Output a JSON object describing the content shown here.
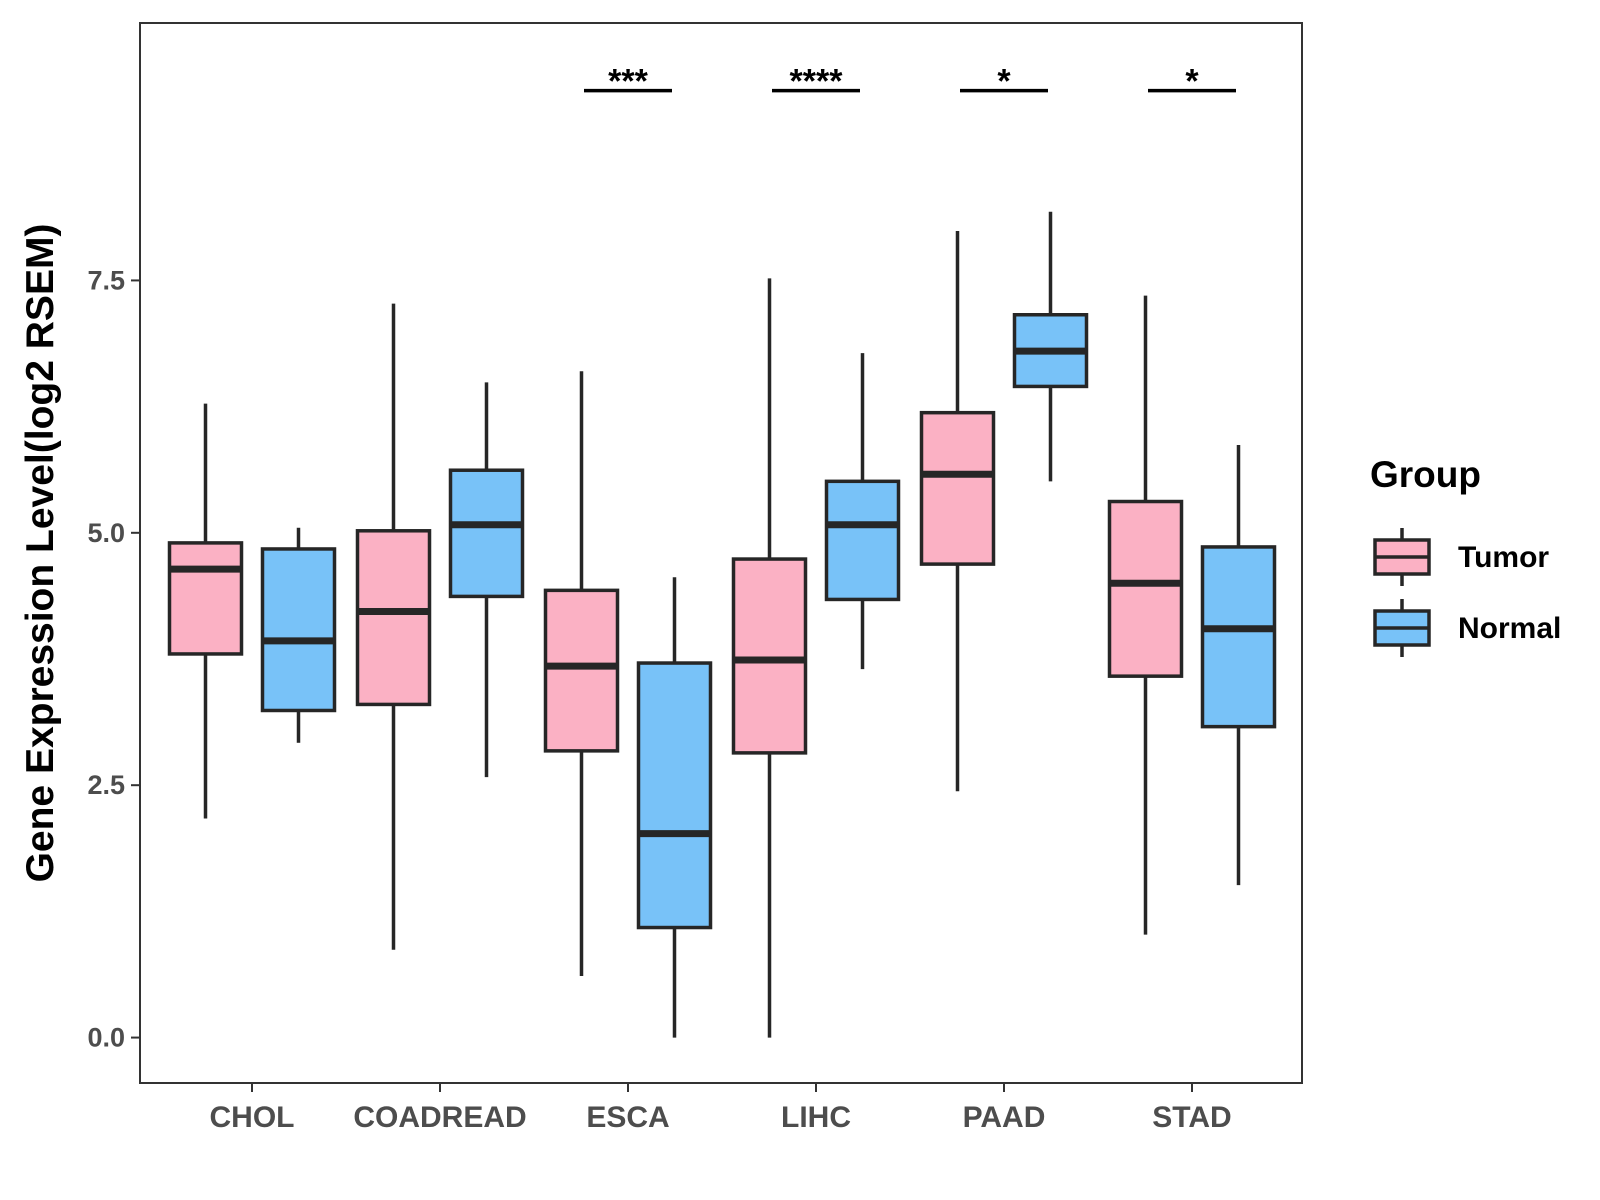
{
  "chart_data": {
    "type": "boxplot",
    "title": "",
    "xlabel": "",
    "ylabel": "Gene Expression Level(log2 RSEM)",
    "ylim": [
      -0.45,
      10.05
    ],
    "yticks": [
      0,
      2.5,
      5,
      7.5
    ],
    "ytick_labels": [
      "0.0",
      "2.5",
      "5.0",
      "7.5"
    ],
    "categories": [
      "CHOL",
      "COADREAD",
      "ESCA",
      "LIHC",
      "PAAD",
      "STAD"
    ],
    "series": [
      {
        "name": "Tumor",
        "color": "#fbb1c4",
        "boxes": [
          {
            "whisker_low": 2.17,
            "q1": 3.8,
            "median": 4.64,
            "q3": 4.9,
            "whisker_high": 6.28
          },
          {
            "whisker_low": 0.87,
            "q1": 3.3,
            "median": 4.22,
            "q3": 5.02,
            "whisker_high": 7.27
          },
          {
            "whisker_low": 0.61,
            "q1": 2.84,
            "median": 3.68,
            "q3": 4.43,
            "whisker_high": 6.6
          },
          {
            "whisker_low": 0.0,
            "q1": 2.82,
            "median": 3.74,
            "q3": 4.74,
            "whisker_high": 7.52
          },
          {
            "whisker_low": 2.44,
            "q1": 4.69,
            "median": 5.58,
            "q3": 6.19,
            "whisker_high": 7.99
          },
          {
            "whisker_low": 1.02,
            "q1": 3.58,
            "median": 4.5,
            "q3": 5.31,
            "whisker_high": 7.35
          }
        ]
      },
      {
        "name": "Normal",
        "color": "#78c2f8",
        "boxes": [
          {
            "whisker_low": 2.92,
            "q1": 3.24,
            "median": 3.93,
            "q3": 4.84,
            "whisker_high": 5.05
          },
          {
            "whisker_low": 2.58,
            "q1": 4.37,
            "median": 5.08,
            "q3": 5.62,
            "whisker_high": 6.49
          },
          {
            "whisker_low": 0.0,
            "q1": 1.09,
            "median": 2.02,
            "q3": 3.71,
            "whisker_high": 4.56
          },
          {
            "whisker_low": 3.65,
            "q1": 4.34,
            "median": 5.08,
            "q3": 5.51,
            "whisker_high": 6.78
          },
          {
            "whisker_low": 5.51,
            "q1": 6.45,
            "median": 6.8,
            "q3": 7.16,
            "whisker_high": 8.18
          },
          {
            "whisker_low": 1.51,
            "q1": 3.08,
            "median": 4.05,
            "q3": 4.86,
            "whisker_high": 5.87
          }
        ]
      }
    ],
    "significance": [
      {
        "category": "ESCA",
        "label": "***",
        "y": 9.38
      },
      {
        "category": "LIHC",
        "label": "****",
        "y": 9.38
      },
      {
        "category": "PAAD",
        "label": "*",
        "y": 9.38
      },
      {
        "category": "STAD",
        "label": "*",
        "y": 9.38
      }
    ],
    "legend": {
      "title": "Group",
      "position": "right",
      "items": [
        "Tumor",
        "Normal"
      ]
    },
    "style": {
      "outline_color": "#262626",
      "frame_color": "#333333",
      "grid": false
    }
  }
}
